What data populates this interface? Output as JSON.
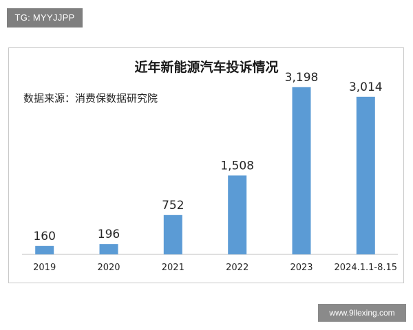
{
  "watermark_top": "TG: MYYJJPP",
  "watermark_bottom": "www.9llexing.com",
  "chart_data": {
    "type": "bar",
    "title": "近年新能源汽车投诉情况",
    "source_note": "数据来源：消费保数据研究院",
    "categories": [
      "2019",
      "2020",
      "2021",
      "2022",
      "2023",
      "2024.1.1-8.15"
    ],
    "values": [
      160,
      196,
      752,
      1508,
      3198,
      3014
    ],
    "value_labels": [
      "160",
      "196",
      "752",
      "1,508",
      "3,198",
      "3,014"
    ],
    "xlabel": "",
    "ylabel": "",
    "ylim": [
      0,
      3550
    ],
    "grid": false,
    "legend": "none",
    "bar_color": "#5b9bd5"
  }
}
